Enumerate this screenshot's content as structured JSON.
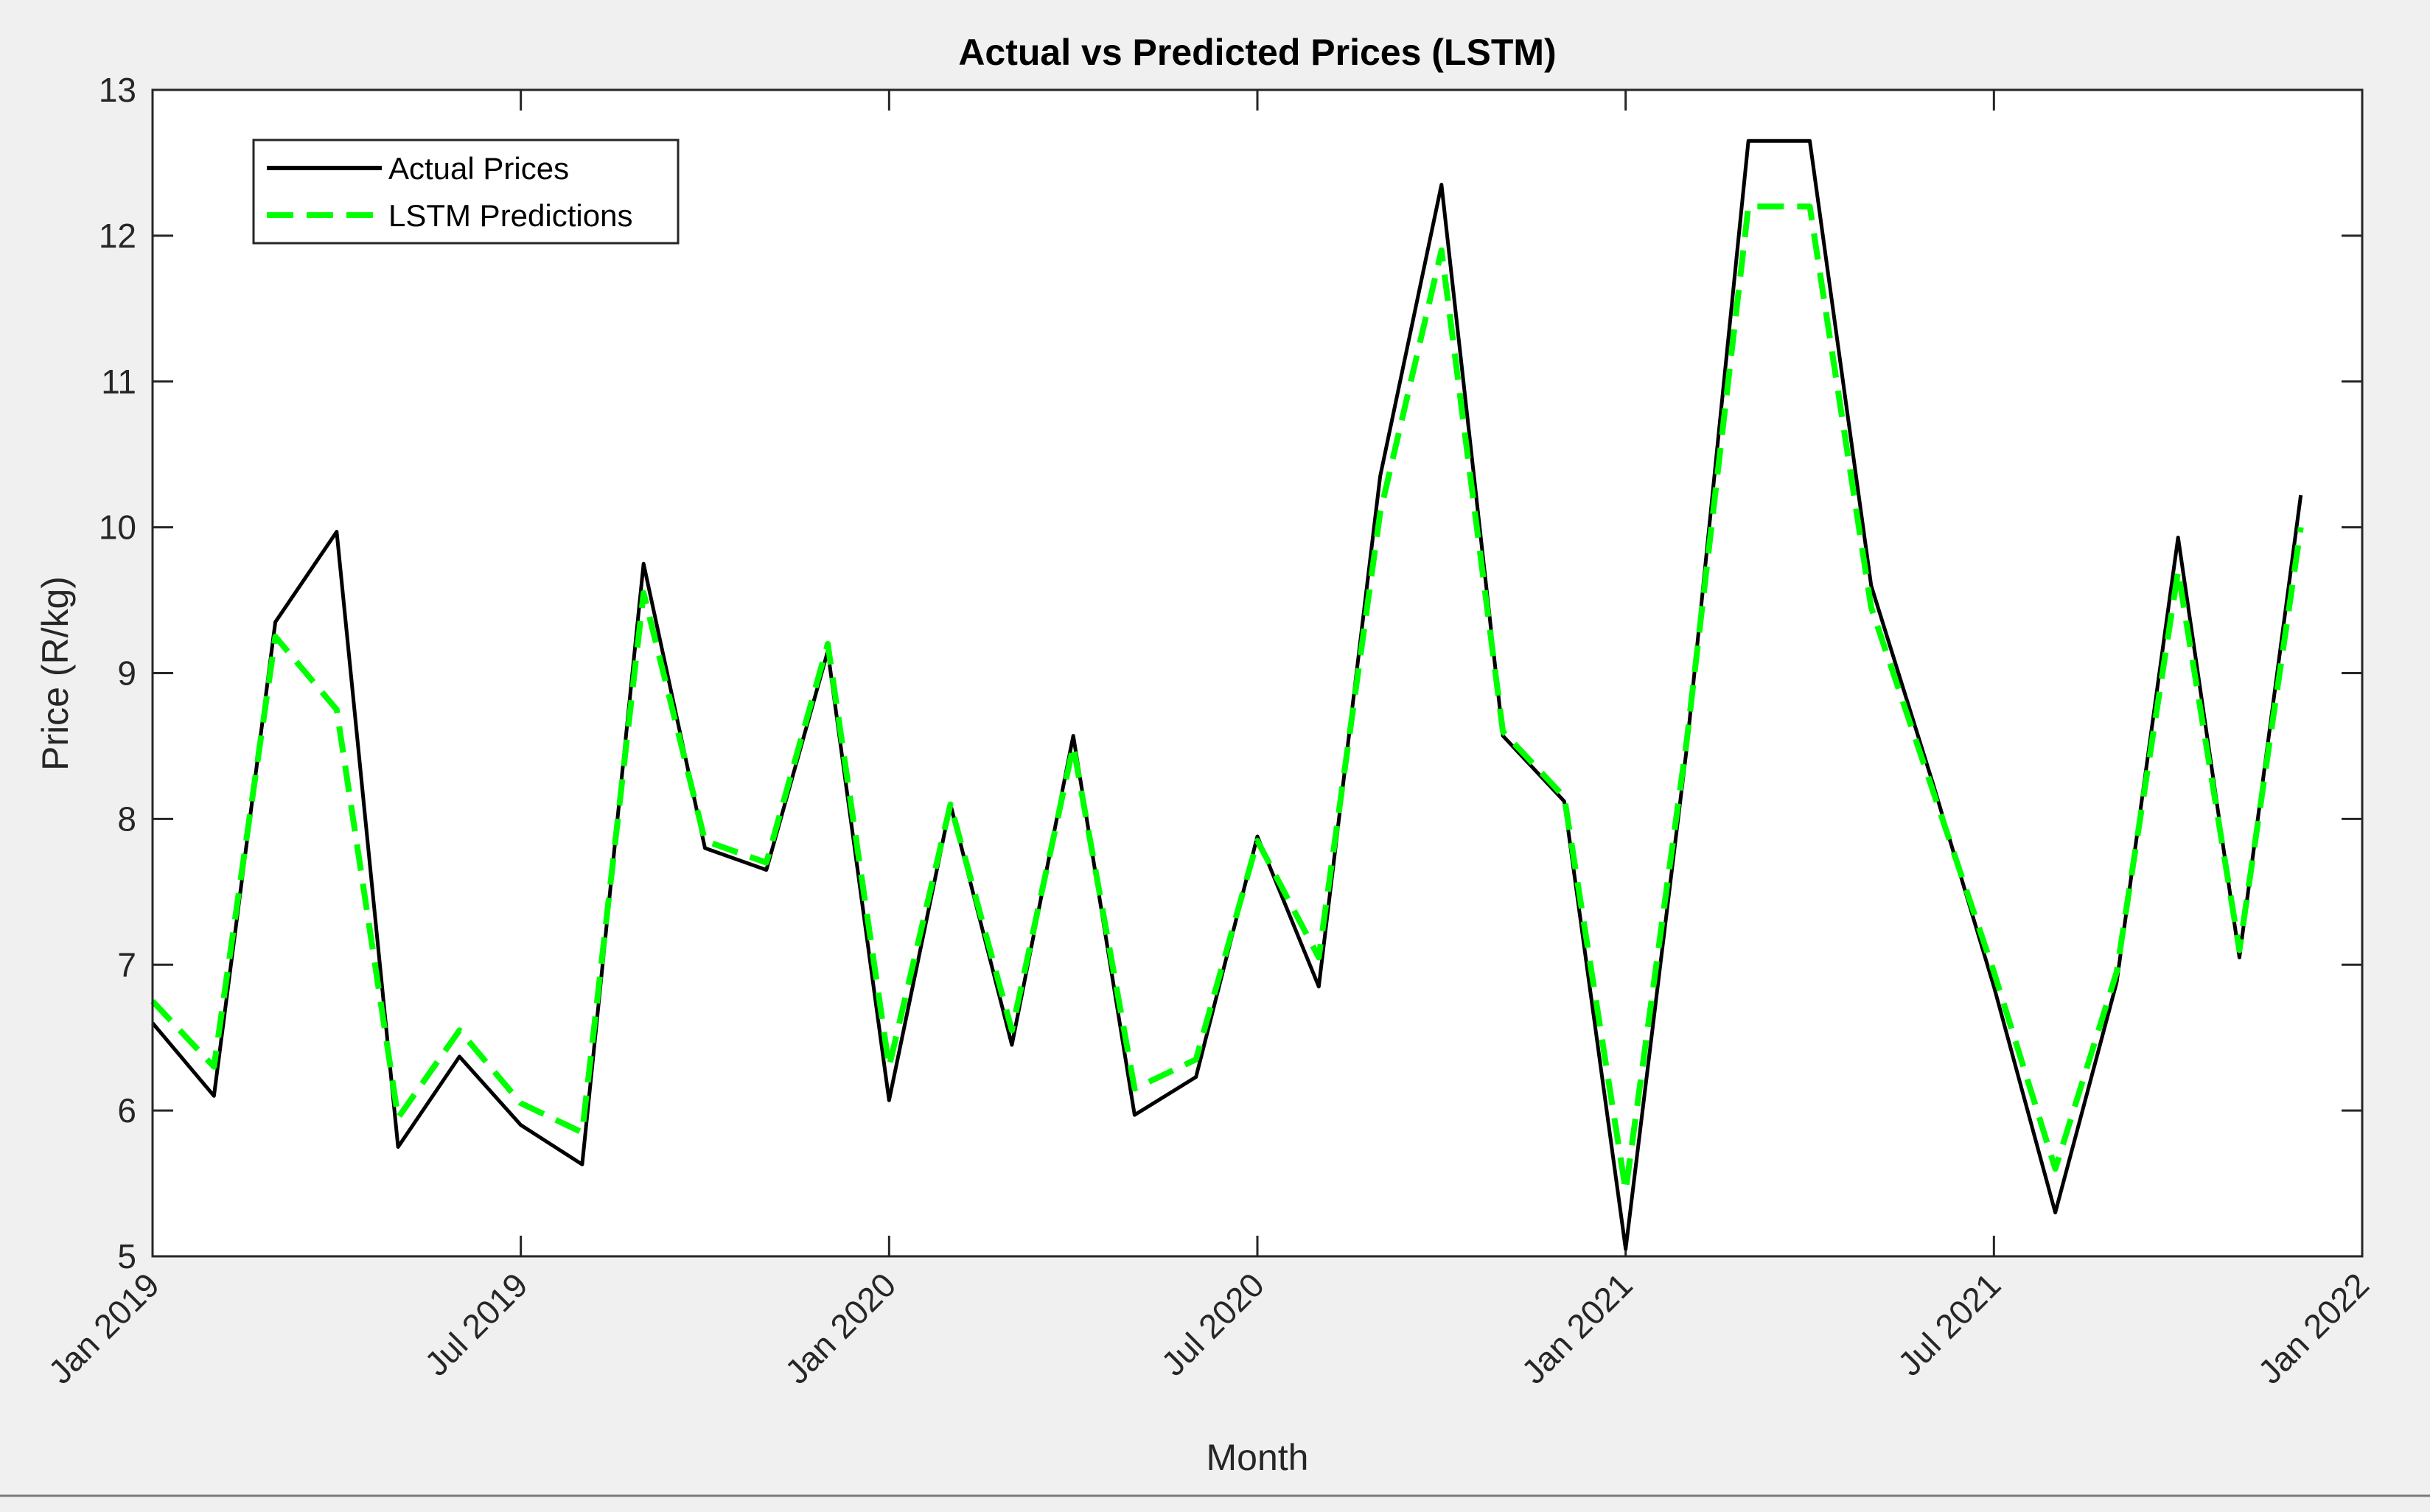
{
  "chart_data": {
    "type": "line",
    "title": "Actual vs Predicted Prices (LSTM)",
    "xlabel": "Month",
    "ylabel": "Price (R/kg)",
    "ylim": [
      5,
      13
    ],
    "y_ticks": [
      5,
      6,
      7,
      8,
      9,
      10,
      11,
      12,
      13
    ],
    "x_range": [
      "2019-01",
      "2022-01"
    ],
    "x_ticks": [
      {
        "month_index": 0,
        "label": "Jan 2019"
      },
      {
        "month_index": 6,
        "label": "Jul 2019"
      },
      {
        "month_index": 12,
        "label": "Jan 2020"
      },
      {
        "month_index": 18,
        "label": "Jul 2020"
      },
      {
        "month_index": 24,
        "label": "Jan 2021"
      },
      {
        "month_index": 30,
        "label": "Jul 2021"
      },
      {
        "month_index": 36,
        "label": "Jan 2022"
      }
    ],
    "legend_position": "top-left",
    "series": [
      {
        "name": "Actual Prices",
        "color": "#000000",
        "style": "solid",
        "x": [
          0,
          1,
          2,
          3,
          4,
          5,
          6,
          7,
          8,
          9,
          10,
          11,
          12,
          13,
          14,
          15,
          16,
          17,
          18,
          19,
          20,
          21,
          22,
          23,
          24,
          25,
          26,
          27,
          28,
          29,
          30,
          31,
          32,
          33,
          34,
          35
        ],
        "values": [
          6.6,
          6.1,
          9.35,
          9.97,
          5.75,
          6.37,
          5.9,
          5.63,
          9.75,
          7.8,
          7.65,
          9.15,
          6.07,
          8.1,
          6.45,
          8.57,
          5.97,
          6.23,
          7.88,
          6.85,
          10.35,
          12.35,
          8.57,
          8.12,
          5.05,
          8.5,
          12.65,
          12.65,
          9.6,
          8.25,
          6.85,
          5.3,
          6.88,
          9.93,
          7.05,
          10.22
        ]
      },
      {
        "name": "LSTM Predictions",
        "color": "#00ff00",
        "style": "dashed",
        "x": [
          0,
          1,
          2,
          3,
          4,
          5,
          6,
          7,
          8,
          9,
          10,
          11,
          12,
          13,
          14,
          15,
          16,
          17,
          18,
          19,
          20,
          21,
          22,
          23,
          24,
          25,
          26,
          27,
          28,
          29,
          30,
          31,
          32,
          33,
          34,
          35
        ],
        "values": [
          6.75,
          6.3,
          9.25,
          8.75,
          5.95,
          6.55,
          6.05,
          5.85,
          9.55,
          7.85,
          7.7,
          9.2,
          6.3,
          8.1,
          6.55,
          8.5,
          6.15,
          6.35,
          7.85,
          7.05,
          10.1,
          11.9,
          8.6,
          8.15,
          5.45,
          8.55,
          12.2,
          12.2,
          9.45,
          8.2,
          6.95,
          5.6,
          6.95,
          9.7,
          7.1,
          10.0
        ]
      }
    ]
  }
}
